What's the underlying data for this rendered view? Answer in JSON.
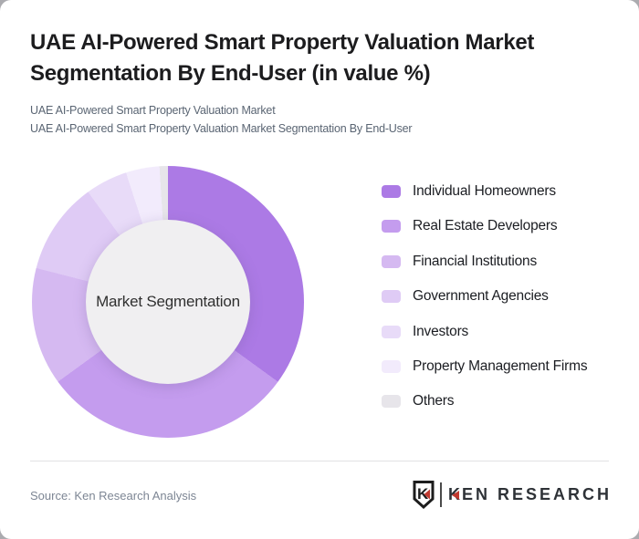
{
  "header": {
    "title": "UAE AI-Powered Smart Property Valuation Market\nSegmentation By End-User (in value %)",
    "subtitle_line1": "UAE AI-Powered Smart Property Valuation Market",
    "subtitle_line2": "UAE AI-Powered Smart Property Valuation Market Segmentation By End-User"
  },
  "chart_data": {
    "type": "pie",
    "subtype": "donut",
    "title": "UAE AI-Powered Smart Property Valuation Market Segmentation By End-User (in value %)",
    "center_label": "Market Segmentation",
    "unit": "% of market value",
    "start_angle_deg": 0,
    "direction": "clockwise",
    "legend_position": "right",
    "categories": [
      "Individual Homeowners",
      "Real Estate Developers",
      "Financial Institutions",
      "Government Agencies",
      "Investors",
      "Property Management Firms",
      "Others"
    ],
    "values": [
      35,
      30,
      14,
      11,
      5,
      4,
      1
    ],
    "colors": [
      "#ac7ae5",
      "#c49cee",
      "#d5b9f1",
      "#dfcbf5",
      "#e8dbf8",
      "#f2ebfc",
      "#e7e5ea"
    ]
  },
  "footer": {
    "source": "Source: Ken Research Analysis",
    "logo": {
      "mark_letter": "K",
      "text": "KEN RESEARCH",
      "accent_color": "#c0392f",
      "text_color": "#2e3237"
    }
  },
  "colors": {
    "card_background": "#ffffff",
    "hole_background": "#f0eff1",
    "title_text": "#1c1c1e",
    "subtitle_text": "#5a6573",
    "legend_text": "#1b1d22",
    "source_text": "#7d8694",
    "divider": "#e2e2e4"
  }
}
